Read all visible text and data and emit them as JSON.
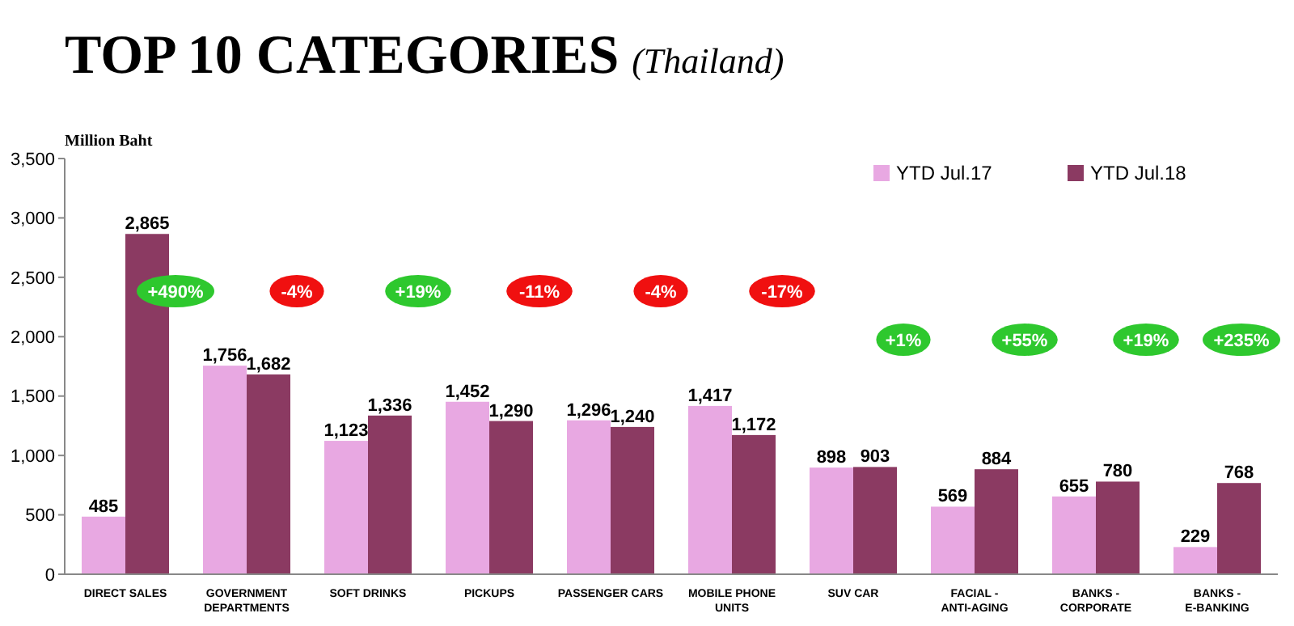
{
  "chart_data": {
    "type": "bar",
    "title": "TOP 10 CATEGORIES",
    "subtitle": "(Thailand)",
    "ylabel": "Million Baht",
    "categories": [
      "DIRECT SALES",
      "GOVERNMENT DEPARTMENTS",
      "SOFT DRINKS",
      "PICKUPS",
      "PASSENGER CARS",
      "MOBILE PHONE UNITS",
      "SUV CAR",
      "FACIAL - ANTI-AGING",
      "BANKS - CORPORATE",
      "BANKS - E-BANKING"
    ],
    "series": [
      {
        "name": "YTD Jul.17",
        "color": "#e8a8e2",
        "values": [
          485,
          1756,
          1123,
          1452,
          1296,
          1417,
          898,
          569,
          655,
          229
        ],
        "value_labels": [
          "485",
          "1,756",
          "1,123",
          "1,452",
          "1,296",
          "1,417",
          "898",
          "569",
          "655",
          "229"
        ]
      },
      {
        "name": "YTD Jul.18",
        "color": "#8b3a62",
        "values": [
          2865,
          1682,
          1336,
          1290,
          1240,
          1172,
          903,
          884,
          780,
          768
        ],
        "value_labels": [
          "2,865",
          "1,682",
          "1,336",
          "1,290",
          "1,240",
          "1,172",
          "903",
          "884",
          "780",
          "768"
        ]
      }
    ],
    "ylim": [
      0,
      3500
    ],
    "yticks": [
      0,
      {
        "value": 500,
        "label": "500"
      },
      {
        "value": 1000,
        "label": "1,000"
      },
      {
        "value": 1500,
        "label": "1,500"
      },
      {
        "value": 2000,
        "label": "2,000"
      },
      {
        "value": 2500,
        "label": "2,500"
      },
      {
        "value": 3000,
        "label": "3,000"
      },
      {
        "value": 3500,
        "label": "3,500"
      }
    ],
    "legend": "top right",
    "grid": false,
    "annotations": [
      "+490%",
      "-4%",
      "+19%",
      "-11%",
      "-4%",
      "-17%",
      "+1%",
      "+55%",
      "+19%",
      "+235%"
    ]
  }
}
